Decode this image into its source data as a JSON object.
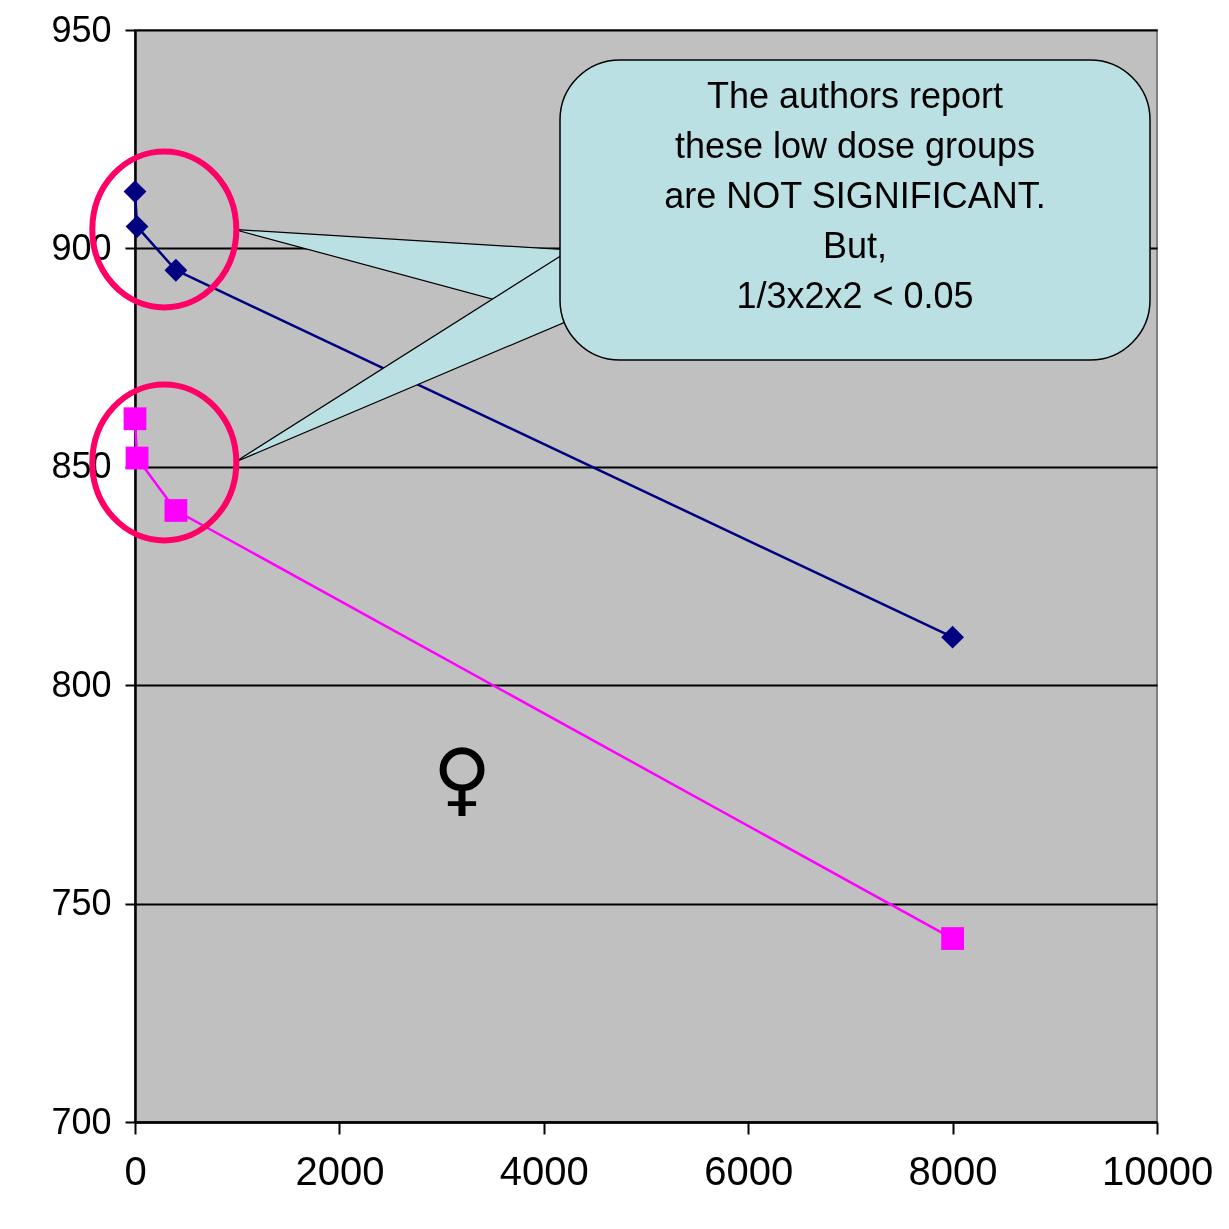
{
  "chart_data": {
    "type": "line",
    "x": [
      0,
      20,
      400,
      8000
    ],
    "series": [
      {
        "color": "#000080",
        "marker": "diamond",
        "values": [
          913,
          905,
          895,
          811
        ]
      },
      {
        "color": "#ff00ff",
        "marker": "square",
        "values": [
          861,
          852,
          840,
          742
        ]
      }
    ],
    "xlim": [
      0,
      10000
    ],
    "xticks": [
      0,
      2000,
      4000,
      6000,
      8000,
      10000
    ],
    "ylim": [
      700,
      950
    ],
    "yticks": [
      700,
      750,
      800,
      850,
      900,
      950
    ],
    "grid": "y",
    "line_style": "solid",
    "annotations": [
      "The authors report\nthese low dose groups\nare NOT SIGNIFICANT.\nBut,\n1/3x2x2 < 0.05",
      "♀"
    ]
  }
}
